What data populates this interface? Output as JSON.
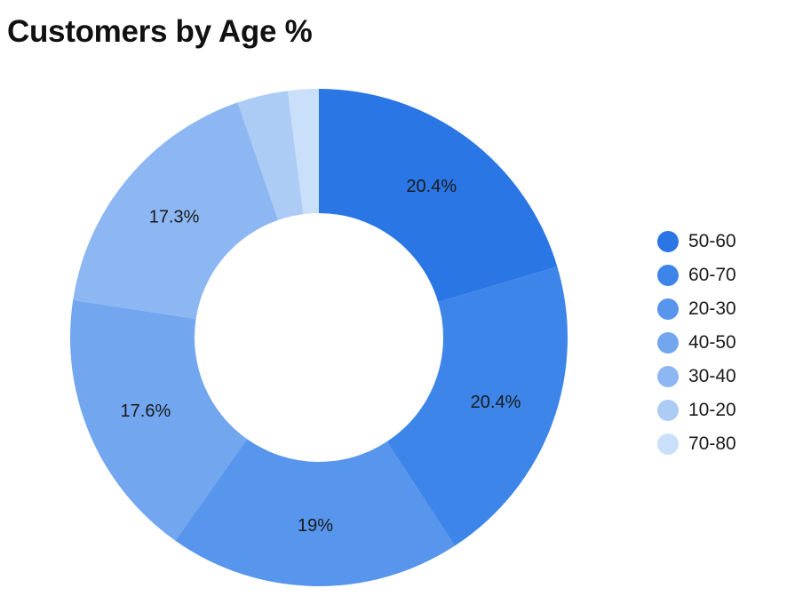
{
  "chart_data": {
    "type": "pie",
    "title": "Customers by Age %",
    "donut": true,
    "legend_position": "right",
    "slices": [
      {
        "label": "50-60",
        "value": 20.4,
        "display": "20.4%",
        "color": "#2b76e5"
      },
      {
        "label": "60-70",
        "value": 20.4,
        "display": "20.4%",
        "color": "#3d85e8"
      },
      {
        "label": "20-30",
        "value": 19.0,
        "display": "19%",
        "color": "#5895ec"
      },
      {
        "label": "40-50",
        "value": 17.6,
        "display": "17.6%",
        "color": "#72a6ef"
      },
      {
        "label": "30-40",
        "value": 17.3,
        "display": "17.3%",
        "color": "#8db7f2"
      },
      {
        "label": "10-20",
        "value": 3.3,
        "display": "",
        "color": "#acccf6"
      },
      {
        "label": "70-80",
        "value": 2.0,
        "display": "",
        "color": "#cadff9"
      }
    ]
  }
}
